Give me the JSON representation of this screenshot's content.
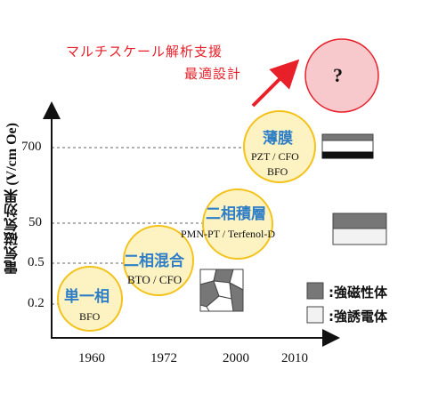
{
  "headline": {
    "line1": "マルチスケール解析支援",
    "line2": "最適設計",
    "color": "#e8202a"
  },
  "future": {
    "label": "?",
    "fill": "#f8c9cc",
    "stroke": "#e8202a"
  },
  "y_axis": {
    "label_kanji": "電気磁気効果",
    "label_units": "(V/cm Oe)",
    "ticks": [
      "700",
      "50",
      "0.5",
      "0.2"
    ]
  },
  "x_axis": {
    "ticks": [
      "1960",
      "1972",
      "2000",
      "2010"
    ]
  },
  "stages": [
    {
      "title": "単一相",
      "material": "BFO",
      "material2": ""
    },
    {
      "title": "二相混合",
      "material": "BTO / CFO",
      "material2": ""
    },
    {
      "title": "二相積層",
      "material": "PMN-PT / Terfenol-D",
      "material2": ""
    },
    {
      "title": "薄膜",
      "material": "PZT / CFO",
      "material2": "BFO"
    }
  ],
  "legend": {
    "ferromagnetic": "強磁性体",
    "ferroelectric": "強誘電体",
    "prefix": ":"
  },
  "colors": {
    "bubble_fill": "#fdf3c2",
    "bubble_stroke": "#f3c21b",
    "title_blue": "#2e7ec7",
    "ferromagnetic_gray": "#777777",
    "ferroelectric_light": "#f2f2f2",
    "dashed_line": "#666666"
  }
}
